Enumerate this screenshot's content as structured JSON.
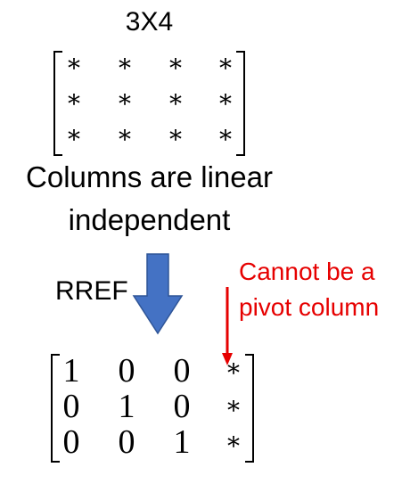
{
  "title": "3X4",
  "top_matrix": {
    "rows": [
      [
        "*",
        "*",
        "*",
        "*"
      ],
      [
        "*",
        "*",
        "*",
        "*"
      ],
      [
        "*",
        "*",
        "*",
        "*"
      ]
    ]
  },
  "caption": {
    "line1": "Columns are linear",
    "line2": "independent"
  },
  "transform_label": "RREF",
  "annotation": {
    "line1": "Cannot be a",
    "line2": "pivot column"
  },
  "bottom_matrix": {
    "rows": [
      [
        "1",
        "0",
        "0",
        "*"
      ],
      [
        "0",
        "1",
        "0",
        "*"
      ],
      [
        "0",
        "0",
        "1",
        "*"
      ]
    ]
  },
  "colors": {
    "arrow": "#4472c4",
    "annotation": "#e60000"
  }
}
